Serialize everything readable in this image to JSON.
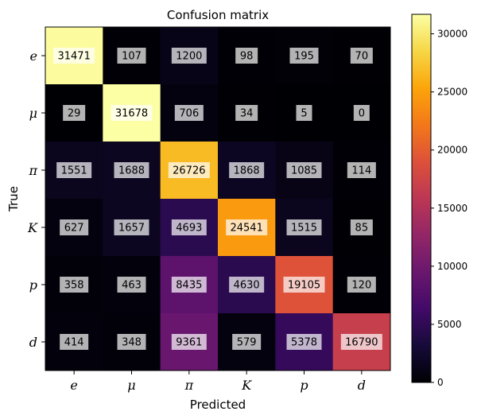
{
  "chart_data": {
    "type": "heatmap",
    "title": "Confusion matrix",
    "xlabel": "Predicted",
    "ylabel": "True",
    "x_categories": [
      "e",
      "μ",
      "π",
      "K",
      "p",
      "d"
    ],
    "y_categories": [
      "e",
      "μ",
      "π",
      "K",
      "p",
      "d"
    ],
    "values": [
      [
        31471,
        107,
        1200,
        98,
        195,
        70
      ],
      [
        29,
        31678,
        706,
        34,
        5,
        0
      ],
      [
        1551,
        1688,
        26726,
        1868,
        1085,
        114
      ],
      [
        627,
        1657,
        4693,
        24541,
        1515,
        85
      ],
      [
        358,
        463,
        8435,
        4630,
        19105,
        120
      ],
      [
        414,
        348,
        9361,
        579,
        5378,
        16790
      ]
    ],
    "colormap": "inferno",
    "vmin": 0,
    "vmax": 31678,
    "colorbar_ticks": [
      0,
      5000,
      10000,
      15000,
      20000,
      25000,
      30000
    ],
    "cell_label_background": "#ffffff",
    "cell_label_background_opacity": 0.7
  }
}
